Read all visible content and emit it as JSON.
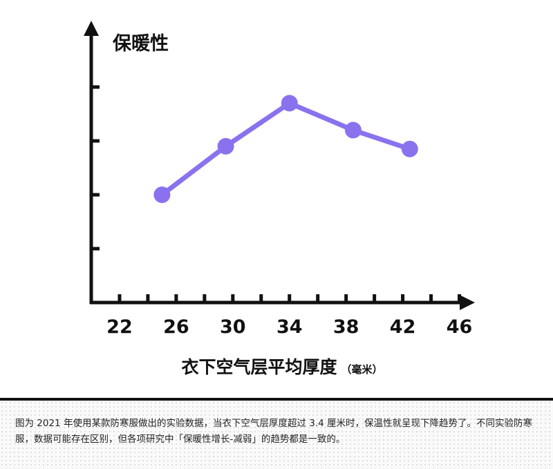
{
  "chart_data": {
    "type": "line",
    "title": "保暖性",
    "xlabel": "衣下空气层平均厚度",
    "xlabel_unit": "（毫米）",
    "x": [
      25,
      29.5,
      34,
      38.5,
      42.5
    ],
    "values": [
      2.0,
      2.9,
      3.7,
      3.2,
      2.85
    ],
    "color": "#8a72ee",
    "xlim": [
      20,
      47
    ],
    "xticks": [
      22,
      26,
      30,
      34,
      38,
      42,
      46
    ],
    "xminorticks": [
      24,
      28,
      32,
      36,
      40,
      44
    ],
    "ylim": [
      0,
      5
    ],
    "yticks": [
      1,
      2,
      3,
      4
    ],
    "grid": false
  },
  "caption": "图为 2021 年使用某款防寒服做出的实验数据，当衣下空气层厚度超过 3.4 厘米时，保温性就呈现下降趋势了。不同实验防寒服，数据可能存在区别，但各项研究中「保暖性增长-减弱」的趋势都是一致的。"
}
